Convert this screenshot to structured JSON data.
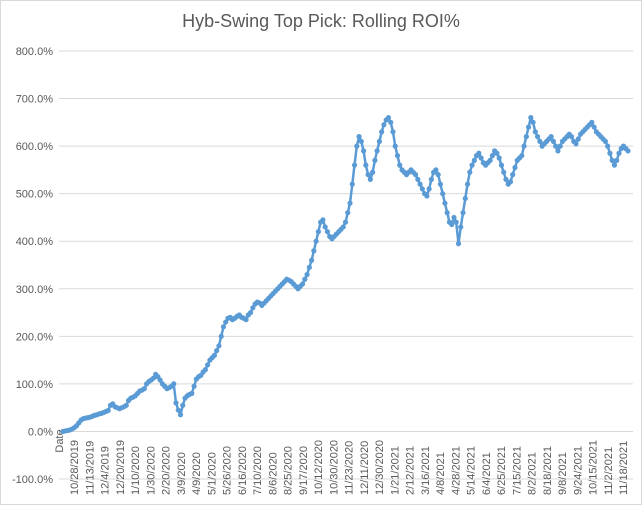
{
  "chart_data": {
    "type": "line",
    "title": "Hyb-Swing Top Pick: Rolling ROI%",
    "xlabel": "",
    "ylabel": "",
    "ylim": [
      -100,
      800
    ],
    "y_ticks": [
      "-100.0%",
      "0.0%",
      "100.0%",
      "200.0%",
      "300.0%",
      "400.0%",
      "500.0%",
      "600.0%",
      "700.0%",
      "800.0%"
    ],
    "x_ticks": [
      "Date",
      "10/28/2019",
      "11/13/2019",
      "12/4/2019",
      "12/20/2019",
      "1/10/2020",
      "1/30/2020",
      "2/20/2020",
      "3/9/2020",
      "4/9/2020",
      "5/1/2020",
      "5/26/2020",
      "6/16/2020",
      "7/10/2020",
      "8/6/2020",
      "8/25/2020",
      "9/17/2020",
      "10/12/2020",
      "10/30/2020",
      "11/23/2020",
      "12/11/2020",
      "12/30/2020",
      "1/21/2021",
      "2/12/2021",
      "3/16/2021",
      "4/8/2021",
      "4/28/2021",
      "5/14/2021",
      "6/4/2021",
      "6/25/2021",
      "7/15/2021",
      "8/2/2021",
      "8/18/2021",
      "9/8/2021",
      "9/24/2021",
      "10/15/2021",
      "11/2/2021",
      "11/18/2021"
    ],
    "grid": true,
    "legend": "none",
    "series": [
      {
        "color": "#5b9bd5",
        "values": [
          0,
          1,
          2,
          3,
          5,
          8,
          12,
          18,
          24,
          27,
          28,
          29,
          30,
          32,
          34,
          35,
          37,
          38,
          40,
          42,
          44,
          55,
          58,
          52,
          50,
          48,
          50,
          52,
          55,
          65,
          70,
          72,
          75,
          80,
          85,
          87,
          90,
          100,
          105,
          108,
          112,
          120,
          115,
          108,
          100,
          95,
          90,
          92,
          95,
          100,
          60,
          45,
          35,
          55,
          70,
          75,
          78,
          80,
          95,
          110,
          115,
          118,
          125,
          130,
          140,
          150,
          155,
          160,
          170,
          180,
          200,
          220,
          230,
          238,
          240,
          235,
          238,
          242,
          245,
          240,
          238,
          235,
          245,
          250,
          260,
          268,
          272,
          270,
          265,
          270,
          275,
          280,
          285,
          290,
          295,
          300,
          305,
          310,
          315,
          320,
          318,
          315,
          310,
          305,
          300,
          305,
          310,
          320,
          330,
          345,
          360,
          380,
          400,
          420,
          440,
          445,
          430,
          420,
          410,
          405,
          410,
          415,
          420,
          425,
          430,
          440,
          460,
          480,
          520,
          560,
          600,
          620,
          610,
          590,
          560,
          540,
          530,
          545,
          570,
          590,
          610,
          630,
          645,
          655,
          660,
          650,
          630,
          600,
          580,
          560,
          550,
          545,
          540,
          545,
          550,
          545,
          540,
          530,
          520,
          510,
          500,
          495,
          510,
          530,
          545,
          550,
          540,
          520,
          500,
          480,
          460,
          440,
          435,
          450,
          440,
          395,
          430,
          460,
          490,
          520,
          545,
          560,
          570,
          580,
          585,
          575,
          565,
          560,
          565,
          570,
          580,
          590,
          585,
          575,
          560,
          545,
          530,
          520,
          525,
          540,
          555,
          570,
          575,
          580,
          600,
          620,
          640,
          660,
          650,
          630,
          620,
          610,
          600,
          605,
          610,
          615,
          620,
          610,
          600,
          590,
          600,
          610,
          615,
          620,
          625,
          620,
          610,
          605,
          615,
          625,
          630,
          635,
          640,
          645,
          650,
          640,
          630,
          625,
          620,
          615,
          610,
          600,
          585,
          570,
          560,
          570,
          585,
          595,
          600,
          595,
          590
        ]
      }
    ]
  }
}
